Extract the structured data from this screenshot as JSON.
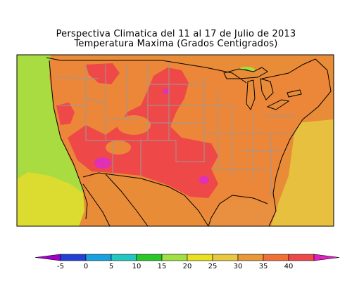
{
  "title": {
    "line1": "Perspectiva Climatica del 11 al 17 de Julio de 2013",
    "line2": "Temperatura Maxima (Grados Centigrados)"
  },
  "colorbar": {
    "ticks": [
      "-5",
      "0",
      "5",
      "10",
      "15",
      "20",
      "25",
      "30",
      "35",
      "40"
    ],
    "colors": [
      "#a000c8",
      "#2040d8",
      "#18a0e0",
      "#20c8c0",
      "#28c828",
      "#a0e040",
      "#e8e020",
      "#e8c840",
      "#e89838",
      "#f07038",
      "#f04848",
      "#e020c0"
    ]
  }
}
